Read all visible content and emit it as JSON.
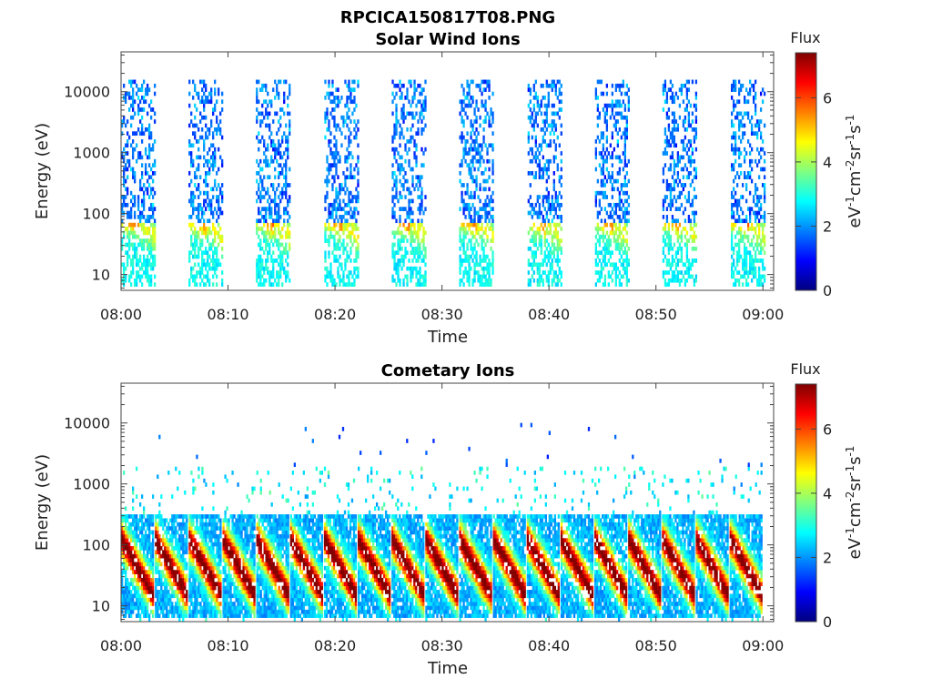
{
  "figure": {
    "title": "RPCICA150817T08.PNG"
  },
  "chart_data": [
    {
      "type": "heatmap",
      "title": "Solar Wind Ions",
      "xlabel": "Time",
      "ylabel": "Energy (eV)",
      "x_ticks": [
        "08:00",
        "08:10",
        "08:20",
        "08:30",
        "08:40",
        "08:50",
        "09:00"
      ],
      "x_range_minutes": [
        0,
        61
      ],
      "y_scale": "log",
      "y_ticks": [
        "10",
        "100",
        "1000",
        "10000"
      ],
      "y_range": [
        5.5,
        45000
      ],
      "colorbar": {
        "label": "Flux",
        "unit": "eV-1cm-2sr-1s-1",
        "ticks": [
          "0",
          "2",
          "4",
          "6"
        ],
        "range": [
          0,
          7.4
        ],
        "colormap": "jet"
      },
      "scans_start_minutes": [
        0.0,
        6.3,
        12.6,
        19.0,
        25.3,
        31.6,
        38.0,
        44.3,
        50.6,
        57.0
      ],
      "scan_duration_minutes": 3.2,
      "peak_energy_eV": 40,
      "peak_flux": 6.0
    },
    {
      "type": "heatmap",
      "title": "Cometary Ions",
      "xlabel": "Time",
      "ylabel": "Energy (eV)",
      "x_ticks": [
        "08:00",
        "08:10",
        "08:20",
        "08:30",
        "08:40",
        "08:50",
        "09:00"
      ],
      "x_range_minutes": [
        0,
        61
      ],
      "y_scale": "log",
      "y_ticks": [
        "10",
        "100",
        "1000",
        "10000"
      ],
      "y_range": [
        5.5,
        45000
      ],
      "colorbar": {
        "label": "Flux",
        "unit": "eV-1cm-2sr-1s-1",
        "ticks": [
          "0",
          "2",
          "4",
          "6"
        ],
        "range": [
          0,
          7.4
        ],
        "colormap": "jet"
      },
      "scans_start_minutes": [
        0.0,
        3.16,
        6.32,
        9.48,
        12.64,
        15.8,
        18.96,
        22.12,
        25.28,
        28.44,
        31.6,
        34.76,
        37.92,
        41.08,
        44.24,
        47.4,
        50.56,
        53.72,
        56.88
      ],
      "scan_duration_minutes": 3.0,
      "peak_energy_eV": 40,
      "peak_flux": 7.2
    }
  ]
}
